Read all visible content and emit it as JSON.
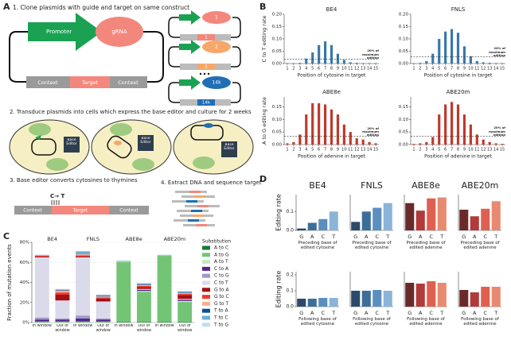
{
  "panel_labels": [
    "A",
    "B",
    "C",
    "D"
  ],
  "diagram": {
    "step1": "1. Clone plasmids with guide and target on same construct",
    "promoter": "Promoter",
    "grna": "gRNA",
    "construct": [
      "Context",
      "Target",
      "Context"
    ],
    "library": [
      {
        "guide": "1",
        "target": "1"
      },
      {
        "guide": "2",
        "target": "2"
      },
      {
        "guide": "14k",
        "target": "14k"
      }
    ],
    "step2": "2. Transduce plasmids into cells which express the base editor and culture for 2 weeks",
    "cell_label": "Base Editor",
    "step3": "3. Base editor converts cytosines to thymines",
    "conversion": "C→ T",
    "step4": "4. Extract DNA and sequence target"
  },
  "chart_data": [
    {
      "type": "bar",
      "title": "BE4",
      "ylabel": "C to T editing rate",
      "xlabel": "Position of cytosine in target",
      "color": "#3a78a8",
      "categories": [
        "1",
        "2",
        "3",
        "4",
        "5",
        "6",
        "7",
        "8",
        "9",
        "10",
        "11",
        "12",
        "13",
        "14",
        "15"
      ],
      "values": [
        0.002,
        0.002,
        0.003,
        0.02,
        0.045,
        0.075,
        0.09,
        0.075,
        0.04,
        0.015,
        0.005,
        0.003,
        0.002,
        0.002,
        0.002
      ],
      "ylim": [
        0,
        0.2
      ],
      "yticks": [
        {
          "value": 0,
          "label": "0.00"
        },
        0.05,
        {
          "value": 0.1,
          "label": "0.10"
        },
        0.15,
        {
          "value": 0.2,
          "label": "0.20"
        }
      ],
      "threshold": 0.018,
      "annotation": "20% of maximum editing"
    },
    {
      "type": "bar",
      "title": "FNLS",
      "xlabel": "Position of cytosine in target",
      "color": "#3a78a8",
      "categories": [
        "1",
        "2",
        "3",
        "4",
        "5",
        "6",
        "7",
        "8",
        "9",
        "10",
        "11",
        "12",
        "13",
        "14",
        "15"
      ],
      "values": [
        0.002,
        0.003,
        0.01,
        0.04,
        0.1,
        0.13,
        0.14,
        0.125,
        0.07,
        0.03,
        0.01,
        0.005,
        0.003,
        0.002,
        0.002
      ],
      "ylim": [
        0,
        0.2
      ],
      "yticks": [
        {
          "value": 0,
          "label": "0.00"
        },
        0.05,
        {
          "value": 0.1,
          "label": "0.10"
        },
        0.15,
        {
          "value": 0.2,
          "label": "0.20"
        }
      ],
      "threshold": 0.028,
      "annotation": "20% of maximum editing"
    },
    {
      "type": "bar",
      "title": "ABE8e",
      "ylabel": "A to G editing rate",
      "xlabel": "Position of adenine in target",
      "color": "#c0392b",
      "categories": [
        "1",
        "2",
        "3",
        "4",
        "5",
        "6",
        "7",
        "8",
        "9",
        "10",
        "11",
        "12",
        "13",
        "14",
        "15"
      ],
      "values": [
        0.005,
        0.01,
        0.04,
        0.12,
        0.165,
        0.165,
        0.16,
        0.14,
        0.12,
        0.08,
        0.05,
        0.025,
        0.02,
        0.01,
        0.005
      ],
      "ylim": [
        0,
        0.19
      ],
      "yticks": [
        {
          "value": 0,
          "label": "0.00"
        },
        0.05,
        {
          "value": 0.1,
          "label": "0.10"
        },
        0.15
      ],
      "threshold": 0.033,
      "annotation": "20% of maximum editing"
    },
    {
      "type": "bar",
      "title": "ABE20m",
      "xlabel": "Position of adenine in target",
      "color": "#c0392b",
      "categories": [
        "1",
        "2",
        "3",
        "4",
        "5",
        "6",
        "7",
        "8",
        "9",
        "10",
        "11",
        "12",
        "13",
        "14",
        "15"
      ],
      "values": [
        0.003,
        0.005,
        0.01,
        0.03,
        0.12,
        0.16,
        0.17,
        0.16,
        0.12,
        0.08,
        0.04,
        0.02,
        0.01,
        0.005,
        0.003
      ],
      "ylim": [
        0,
        0.19
      ],
      "yticks": [
        {
          "value": 0,
          "label": "0.00"
        },
        0.05,
        {
          "value": 0.1,
          "label": "0.10"
        },
        0.15
      ],
      "threshold": 0.034,
      "annotation": "20% of maximum editing"
    },
    {
      "type": "stacked_bar",
      "ylabel": "Fraction of mutation events",
      "groups": [
        "BE4",
        "FNLS",
        "ABE8e",
        "ABE20m"
      ],
      "categories": [
        "In window",
        "Out of window",
        "In window",
        "Out of window",
        "In window",
        "Out of window",
        "In window",
        "Out of window"
      ],
      "ylim": [
        0,
        80
      ],
      "yticks": [
        {
          "value": 0,
          "label": "0%"
        },
        {
          "value": 20,
          "label": "20%"
        },
        {
          "value": 40,
          "label": "40%"
        },
        {
          "value": 60,
          "label": "60%"
        },
        {
          "value": 80,
          "label": "80%"
        }
      ],
      "legend_title": "Substitution",
      "series": [
        {
          "name": "A to C",
          "color": "#1a7a3a",
          "values": [
            0,
            0,
            0,
            0,
            0.5,
            0.5,
            0.5,
            0.5
          ]
        },
        {
          "name": "A to G",
          "color": "#74c476",
          "values": [
            1,
            1,
            1,
            1,
            60,
            30,
            66,
            20
          ]
        },
        {
          "name": "A to T",
          "color": "#c7e9c0",
          "values": [
            0,
            0,
            0,
            0,
            0.5,
            1,
            0.5,
            1
          ]
        },
        {
          "name": "C to A",
          "color": "#54278f",
          "values": [
            2,
            2,
            3,
            2,
            0,
            1,
            0,
            1
          ]
        },
        {
          "name": "C to G",
          "color": "#9e9ac8",
          "values": [
            2,
            1,
            3,
            1,
            0,
            0.5,
            0,
            0.5
          ]
        },
        {
          "name": "C to T",
          "color": "#dadaeb",
          "values": [
            60,
            18,
            58,
            17,
            0,
            0.5,
            0,
            0.5
          ]
        },
        {
          "name": "G to A",
          "color": "#a50f15",
          "values": [
            1,
            6,
            1,
            3,
            0,
            2,
            0,
            4
          ]
        },
        {
          "name": "G to C",
          "color": "#ef3b2c",
          "values": [
            0.5,
            2,
            1,
            1,
            0,
            1,
            0,
            1
          ]
        },
        {
          "name": "G to T",
          "color": "#fcae91",
          "values": [
            0.5,
            2,
            1,
            1,
            0,
            1,
            0,
            1
          ]
        },
        {
          "name": "T to A",
          "color": "#08519c",
          "values": [
            0,
            0.5,
            0,
            0.5,
            0,
            0.5,
            0,
            0.5
          ]
        },
        {
          "name": "T to C",
          "color": "#6baed6",
          "values": [
            0.5,
            0.5,
            3,
            1,
            0.5,
            1,
            0.5,
            1
          ]
        },
        {
          "name": "T to G",
          "color": "#c6dbef",
          "values": [
            0,
            0.5,
            0,
            0.5,
            0,
            0.5,
            0,
            0.5
          ]
        }
      ]
    },
    {
      "type": "bar",
      "title": "BE4",
      "ylabel": "Editing rate",
      "xlabel": "Preceding base of edited cytosine",
      "categories": [
        "G",
        "A",
        "C",
        "T"
      ],
      "colors": [
        "#2b4a6b",
        "#3d6e99",
        "#5a8fbf",
        "#8ab4d8"
      ],
      "values": [
        0.01,
        0.04,
        0.06,
        0.1
      ],
      "ylim": [
        0,
        0.19
      ],
      "yticks": [
        {
          "value": 0,
          "label": "0.0"
        },
        0.1
      ]
    },
    {
      "type": "bar",
      "title": "FNLS",
      "xlabel": "Preceding base of edited cytosine",
      "categories": [
        "G",
        "A",
        "C",
        "T"
      ],
      "colors": [
        "#2b4a6b",
        "#3d6e99",
        "#5a8fbf",
        "#8ab4d8"
      ],
      "values": [
        0.045,
        0.1,
        0.12,
        0.145
      ],
      "ylim": [
        0,
        0.19
      ]
    },
    {
      "type": "bar",
      "title": "ABE8e",
      "xlabel": "Preceding base of edited adenine",
      "categories": [
        "G",
        "A",
        "C",
        "T"
      ],
      "colors": [
        "#6b2a2a",
        "#b33a3a",
        "#e06050",
        "#e88a70"
      ],
      "values": [
        0.145,
        0.105,
        0.17,
        0.175
      ],
      "ylim": [
        0,
        0.19
      ]
    },
    {
      "type": "bar",
      "title": "ABE20m",
      "xlabel": "Preceding base of edited adenine",
      "categories": [
        "G",
        "A",
        "C",
        "T"
      ],
      "colors": [
        "#6b2a2a",
        "#b33a3a",
        "#e06050",
        "#e88a70"
      ],
      "values": [
        0.11,
        0.075,
        0.115,
        0.155
      ],
      "ylim": [
        0,
        0.19
      ]
    },
    {
      "type": "bar",
      "ylabel": "Editing rate",
      "xlabel": "Following base of edited cytosine",
      "categories": [
        "G",
        "A",
        "C",
        "T"
      ],
      "colors": [
        "#2b4a6b",
        "#3d6e99",
        "#5a8fbf",
        "#8ab4d8"
      ],
      "values": [
        0.05,
        0.05,
        0.055,
        0.055
      ],
      "ylim": [
        0,
        0.22
      ],
      "yticks": [
        {
          "value": 0,
          "label": "0.0"
        },
        0.1,
        0.2
      ]
    },
    {
      "type": "bar",
      "xlabel": "Following base of edited cytosine",
      "categories": [
        "G",
        "A",
        "C",
        "T"
      ],
      "colors": [
        "#2b4a6b",
        "#3d6e99",
        "#5a8fbf",
        "#8ab4d8"
      ],
      "values": [
        0.1,
        0.1,
        0.105,
        0.1
      ],
      "ylim": [
        0,
        0.22
      ]
    },
    {
      "type": "bar",
      "xlabel": "Following base of edited adenine",
      "categories": [
        "G",
        "A",
        "C",
        "T"
      ],
      "colors": [
        "#6b2a2a",
        "#b33a3a",
        "#e06050",
        "#e88a70"
      ],
      "values": [
        0.15,
        0.145,
        0.16,
        0.15
      ],
      "ylim": [
        0,
        0.22
      ]
    },
    {
      "type": "bar",
      "xlabel": "Following base of edited adenine",
      "categories": [
        "G",
        "A",
        "C",
        "T"
      ],
      "colors": [
        "#6b2a2a",
        "#b33a3a",
        "#e06050",
        "#e88a70"
      ],
      "values": [
        0.105,
        0.09,
        0.125,
        0.125
      ],
      "ylim": [
        0,
        0.22
      ]
    }
  ]
}
